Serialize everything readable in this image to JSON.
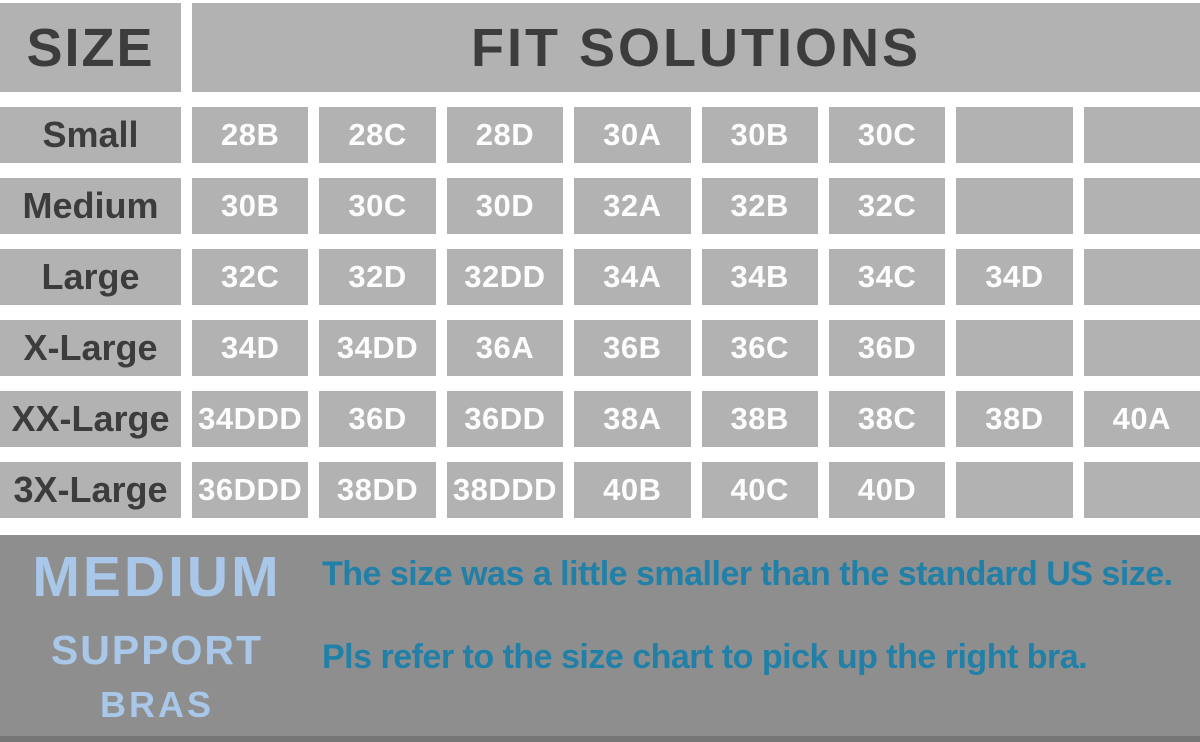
{
  "chart_data": {
    "type": "table",
    "corner_header": "SIZE",
    "span_header": "FIT SOLUTIONS",
    "rows": [
      {
        "label": "Small",
        "cells": [
          "28B",
          "28C",
          "28D",
          "30A",
          "30B",
          "30C",
          "",
          ""
        ]
      },
      {
        "label": "Medium",
        "cells": [
          "30B",
          "30C",
          "30D",
          "32A",
          "32B",
          "32C",
          "",
          ""
        ]
      },
      {
        "label": "Large",
        "cells": [
          "32C",
          "32D",
          "32DD",
          "34A",
          "34B",
          "34C",
          "34D",
          ""
        ]
      },
      {
        "label": "X-Large",
        "cells": [
          "34D",
          "34DD",
          "36A",
          "36B",
          "36C",
          "36D",
          "",
          ""
        ]
      },
      {
        "label": "XX-Large",
        "cells": [
          "34DDD",
          "36D",
          "36DD",
          "38A",
          "38B",
          "38C",
          "38D",
          "40A"
        ]
      },
      {
        "label": "3X-Large",
        "cells": [
          "36DDD",
          "38DD",
          "38DDD",
          "40B",
          "40C",
          "40D",
          "",
          ""
        ]
      }
    ]
  },
  "banner": {
    "title_line1": "MEDIUM",
    "title_line2": "SUPPORT",
    "title_line3": "BRAS",
    "note_line1": "The size was a little smaller than the standard US size.",
    "note_line2": "Pls refer to the size chart to pick up the right bra."
  },
  "colors": {
    "cell_gray": "#b2b2b2",
    "banner_gray": "#8e8e8e",
    "banner_bottom_strip": "#767676",
    "dark_text": "#3c3c3c",
    "cell_text": "#fdfdfd",
    "light_blue": "#a9c8e9",
    "teal": "#2080a8",
    "divider_white": "#ffffff"
  }
}
